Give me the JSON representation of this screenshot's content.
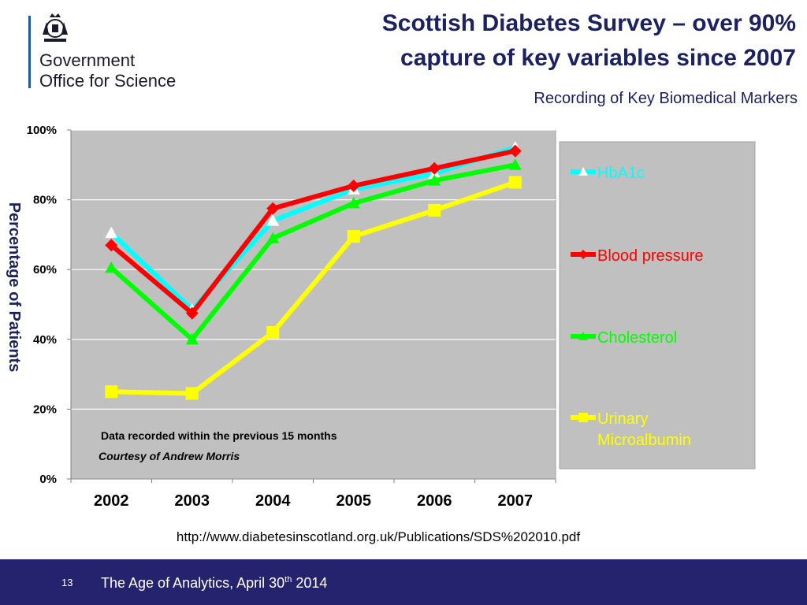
{
  "logo": {
    "line1": "Government",
    "line2": "Office for Science"
  },
  "title": {
    "line1": "Scottish Diabetes Survey – over 90%",
    "line2": "capture of key variables since 2007"
  },
  "subtitle": "Recording of Key Biomedical Markers",
  "chart_data": {
    "type": "line",
    "title": "",
    "xlabel": "",
    "ylabel": "Percentage of Patients",
    "categories": [
      "2002",
      "2003",
      "2004",
      "2005",
      "2006",
      "2007"
    ],
    "ylim": [
      0,
      100
    ],
    "y_ticks": [
      0,
      20,
      40,
      60,
      80,
      100
    ],
    "y_tick_labels": [
      "0%",
      "20%",
      "40%",
      "60%",
      "80%",
      "100%"
    ],
    "grid": true,
    "legend_position": "right",
    "series": [
      {
        "name": "HbA1c",
        "color": "#00ffff",
        "marker": "triangle",
        "marker_color": "#ffffff",
        "values": [
          70.5,
          48.5,
          74,
          83,
          87.5,
          95
        ]
      },
      {
        "name": "Blood pressure",
        "color": "#ff0000",
        "marker": "diamond",
        "marker_color": "#ff0000",
        "values": [
          67,
          47.5,
          77.5,
          84,
          89,
          94
        ]
      },
      {
        "name": "Cholesterol",
        "color": "#00ff00",
        "marker": "triangle",
        "marker_color": "#00ff00",
        "values": [
          60.5,
          40,
          69,
          79,
          85.5,
          90
        ]
      },
      {
        "name": "Urinary Microalbumin",
        "legend_lines": [
          "Urinary",
          "Microalbumin"
        ],
        "color": "#ffff00",
        "marker": "square",
        "marker_color": "#ffff00",
        "values": [
          25,
          24.5,
          42,
          69.5,
          77,
          85
        ]
      }
    ],
    "annotations": [
      "Data recorded within the previous 15 months",
      "Courtesy of Andrew Morris"
    ]
  },
  "source_url": "http://www.diabetesinscotland.org.uk/Publications/SDS%202010.pdf",
  "footer": {
    "page_number": "13",
    "text_prefix": "The Age of Analytics, April 30",
    "text_sup": "th",
    "text_suffix": " 2014"
  }
}
